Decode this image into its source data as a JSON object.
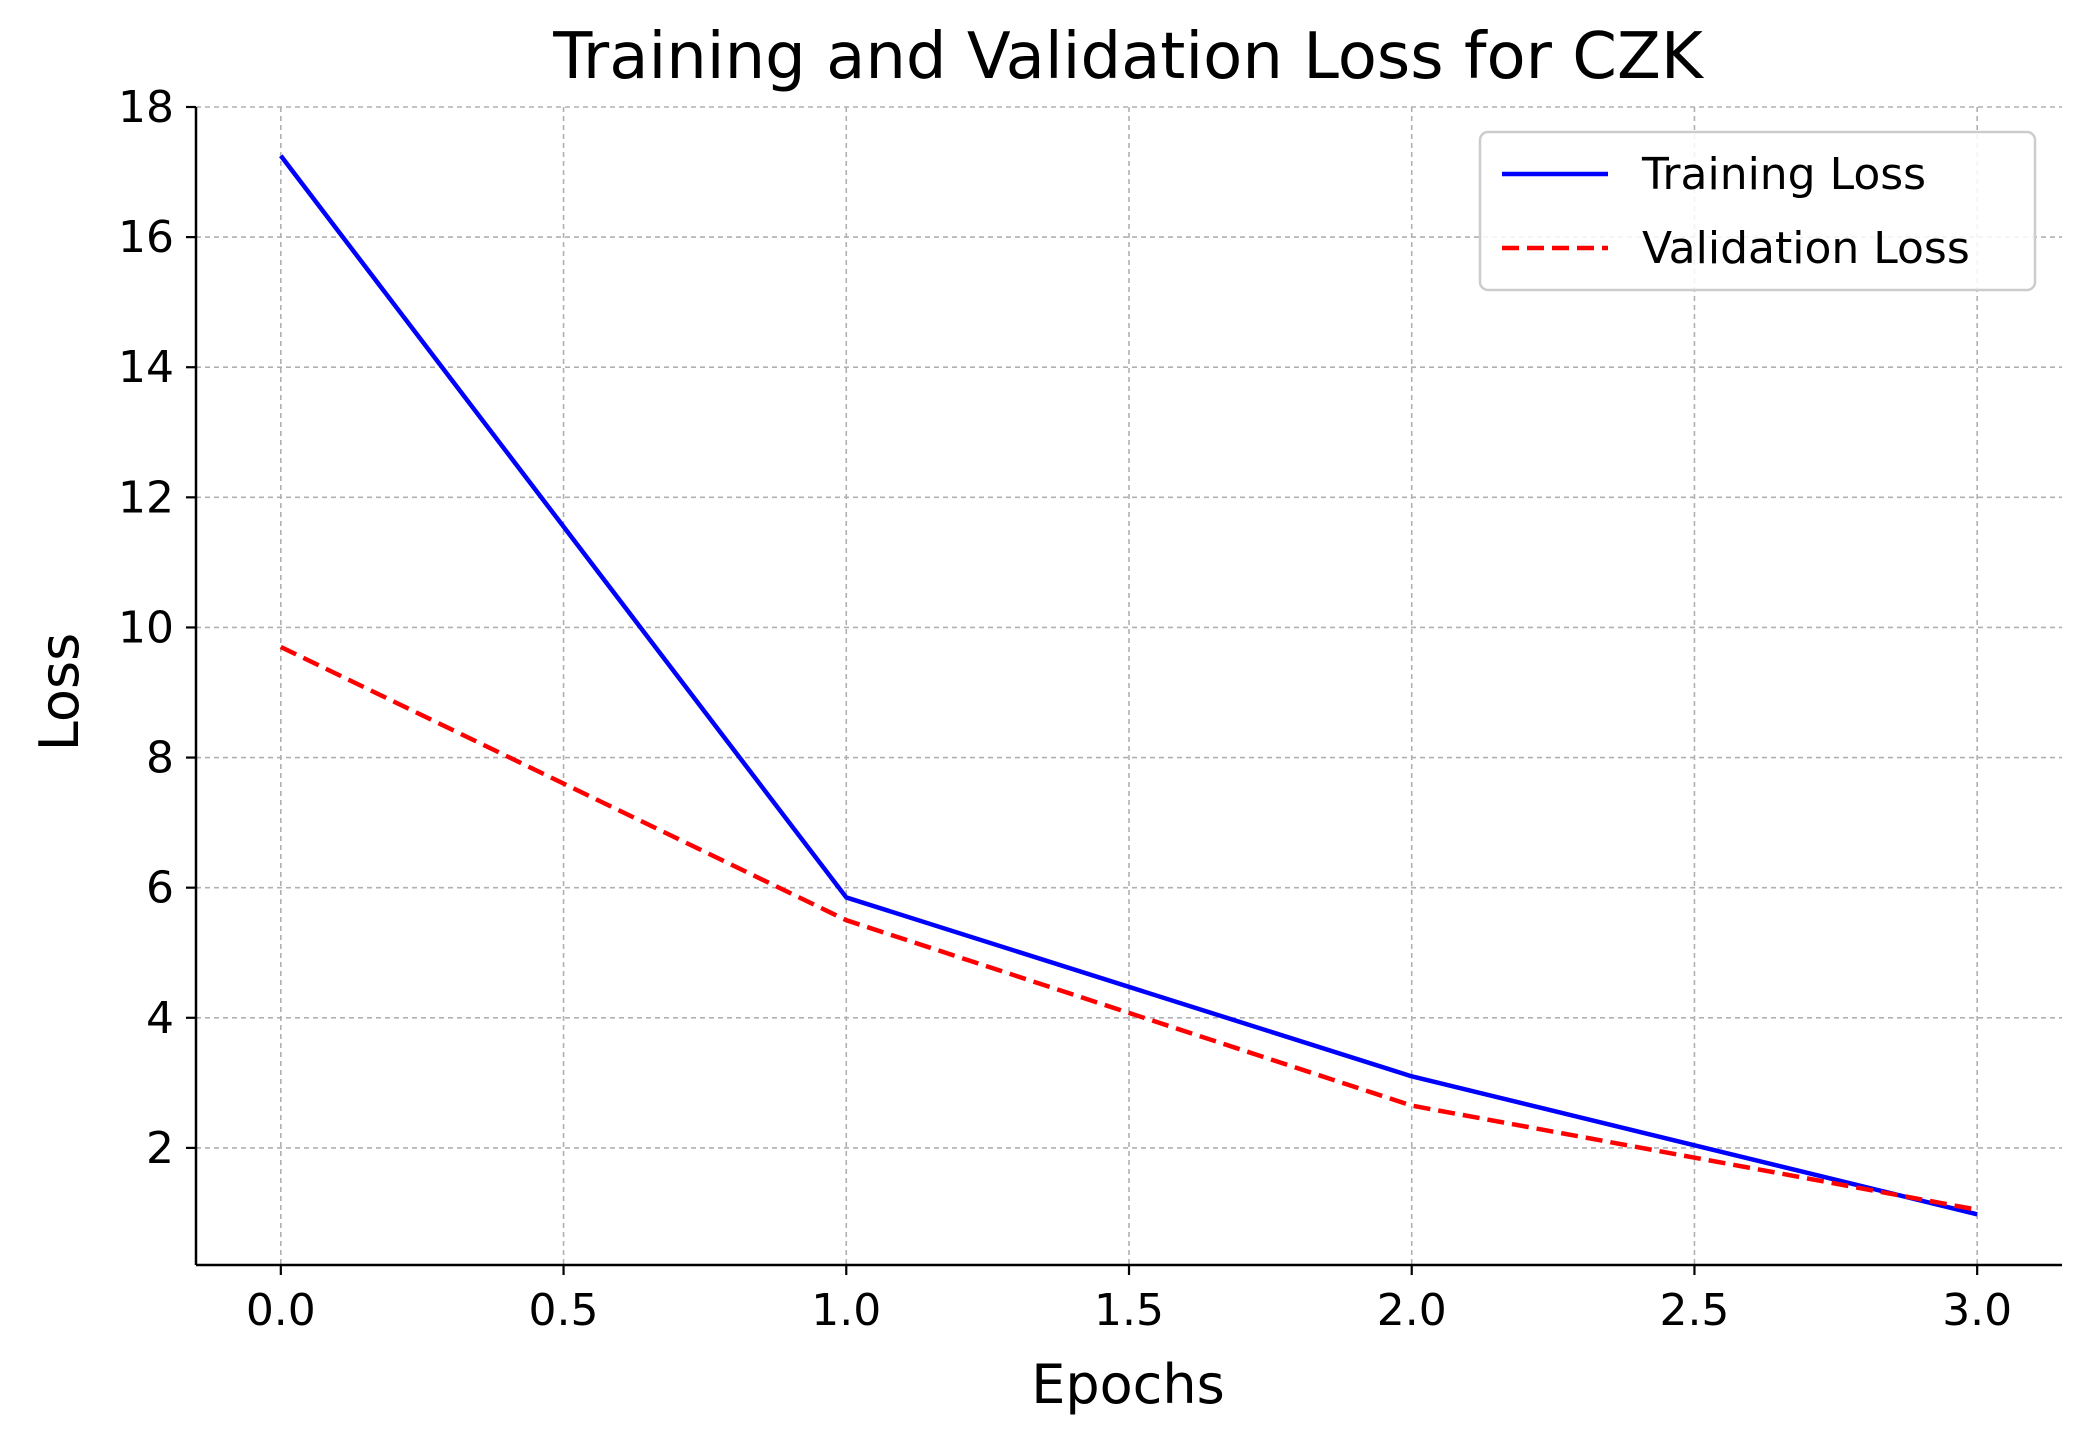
{
  "chart_data": {
    "type": "line",
    "title": "Training and Validation Loss for CZK",
    "xlabel": "Epochs",
    "ylabel": "Loss",
    "x": [
      0,
      1,
      2,
      3
    ],
    "xlim": [
      -0.15,
      3.15
    ],
    "ylim": [
      0.2,
      18
    ],
    "xticks": [
      0.0,
      0.5,
      1.0,
      1.5,
      2.0,
      2.5,
      3.0
    ],
    "xtick_labels": [
      "0.0",
      "0.5",
      "1.0",
      "1.5",
      "2.0",
      "2.5",
      "3.0"
    ],
    "yticks": [
      2,
      4,
      6,
      8,
      10,
      12,
      14,
      16,
      18
    ],
    "ytick_labels": [
      "2",
      "4",
      "6",
      "8",
      "10",
      "12",
      "14",
      "16",
      "18"
    ],
    "grid": true,
    "legend_position": "top-right",
    "series": [
      {
        "name": "Training Loss",
        "values": [
          17.25,
          5.85,
          3.1,
          0.98
        ],
        "color": "#0000ff",
        "style": "solid"
      },
      {
        "name": "Validation Loss",
        "values": [
          9.7,
          5.5,
          2.65,
          1.05
        ],
        "color": "#ff0000",
        "style": "dashed"
      }
    ]
  }
}
